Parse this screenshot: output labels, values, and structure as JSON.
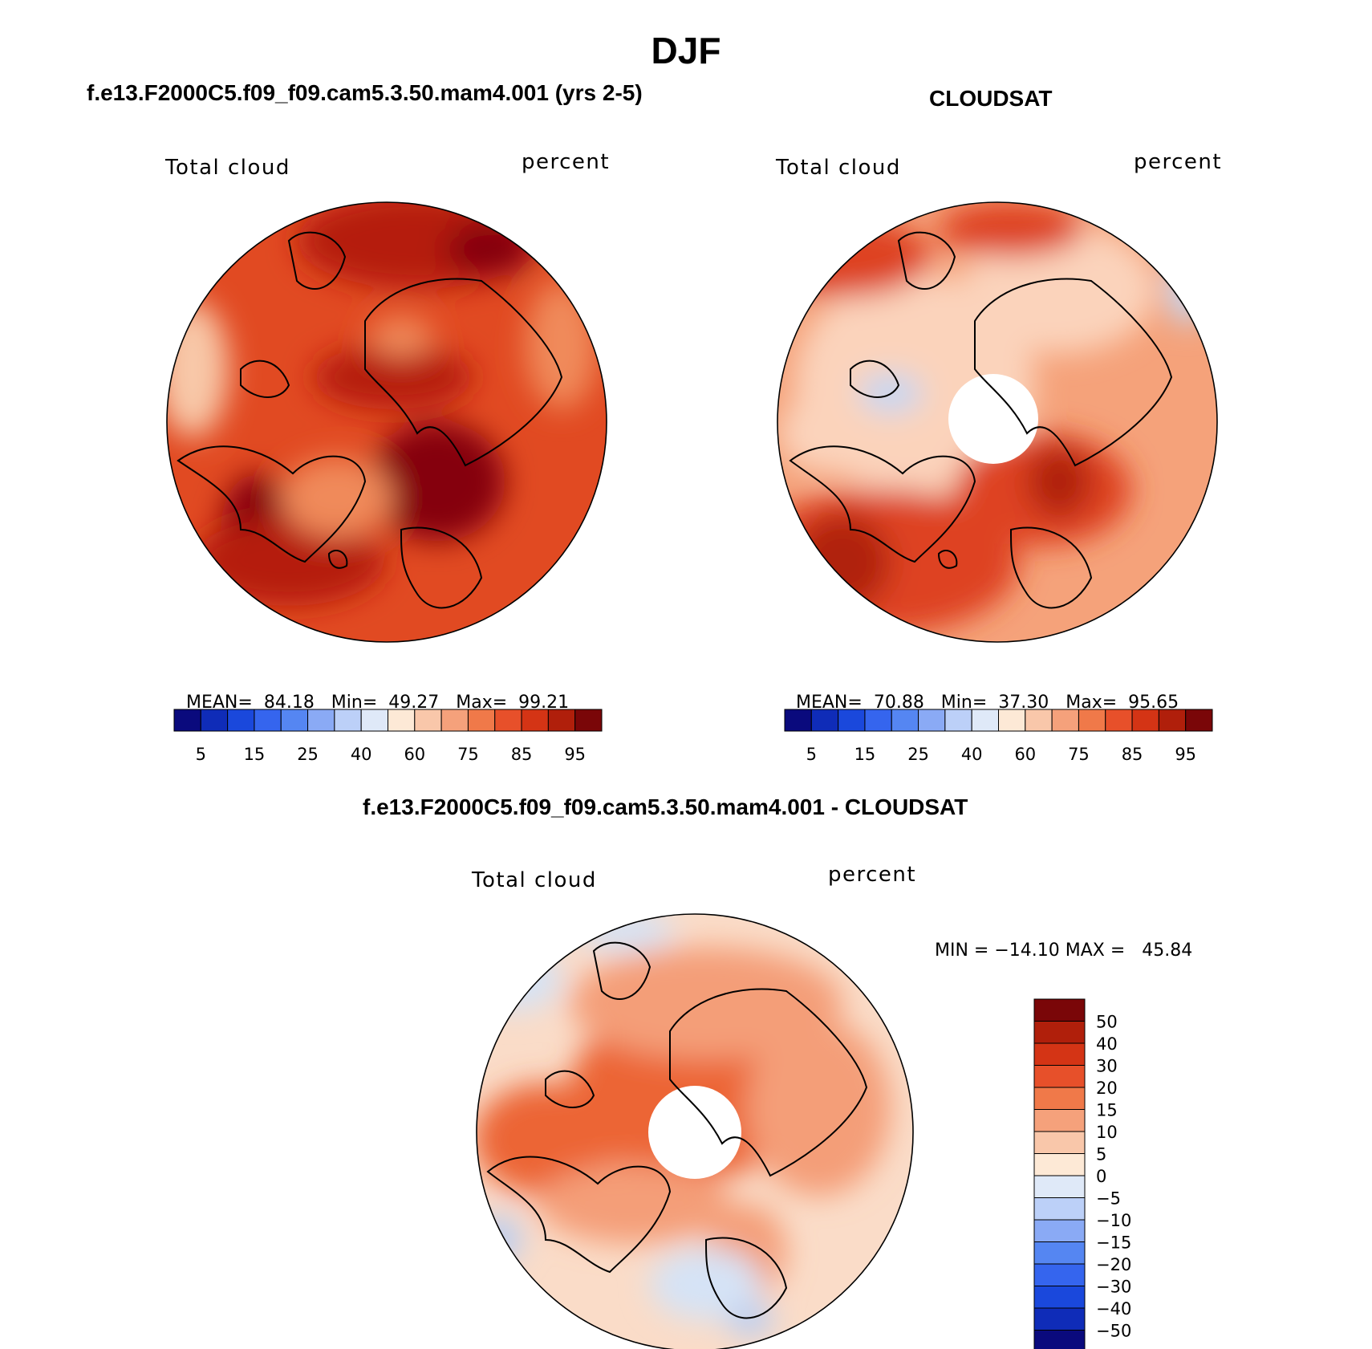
{
  "title": "DJF",
  "panels": [
    {
      "title": "f.e13.F2000C5.f09_f09.cam5.3.50.mam4.001 (yrs 2-5)",
      "left_label": "Total cloud",
      "right_label": "percent",
      "stats": {
        "mean_label": "MEAN=",
        "mean": "84.18",
        "min_label": "Min=",
        "min": "49.27",
        "max_label": "Max=",
        "max": "99.21"
      }
    },
    {
      "title": "CLOUDSAT",
      "left_label": "Total cloud",
      "right_label": "percent",
      "stats": {
        "mean_label": "MEAN=",
        "mean": "70.88",
        "min_label": "Min=",
        "min": "37.30",
        "max_label": "Max=",
        "max": "95.65"
      }
    },
    {
      "title": "f.e13.F2000C5.f09_f09.cam5.3.50.mam4.001 - CLOUDSAT",
      "left_label": "Total cloud",
      "right_label": "percent",
      "stats": {
        "text": "MIN = −14.10 MAX =   45.84"
      }
    }
  ],
  "colorbar_abs": {
    "colors": [
      "#0a0a7d",
      "#0f2cb8",
      "#1a48dc",
      "#3565ee",
      "#5586f2",
      "#8aaaf5",
      "#bcd0f8",
      "#dfe9f8",
      "#fde9d6",
      "#f9c7aa",
      "#f5a17b",
      "#f07949",
      "#e7502a",
      "#d43415",
      "#b01f0b",
      "#7a0608"
    ],
    "tick_labels": [
      "5",
      "15",
      "25",
      "40",
      "60",
      "75",
      "85",
      "95"
    ]
  },
  "colorbar_diff": {
    "colors": [
      "#7a0608",
      "#b01f0b",
      "#d43415",
      "#e7502a",
      "#f07949",
      "#f5a17b",
      "#f9c7aa",
      "#fde9d6",
      "#dfe9f8",
      "#bcd0f8",
      "#8aaaf5",
      "#5586f2",
      "#3565ee",
      "#1a48dc",
      "#0f2cb8",
      "#0a0a7d"
    ],
    "tick_labels": [
      "50",
      "40",
      "30",
      "20",
      "15",
      "10",
      "5",
      "0",
      "−5",
      "−10",
      "−15",
      "−20",
      "−30",
      "−40",
      "−50"
    ]
  },
  "map_colors": {
    "model_base": "#e14a22",
    "model_dark": "#b51f0c",
    "model_darkest": "#850608",
    "model_light": "#f08a5a",
    "model_pale": "#f8c8a8",
    "obs_base": "#f5a27a",
    "obs_light": "#fbd3bb",
    "obs_dark": "#de4321",
    "obs_darkest": "#b02210",
    "obs_blue": "#c5d7f3",
    "diff_base": "#fadcc8",
    "diff_mid": "#f49e78",
    "diff_strong": "#ec6536",
    "diff_blue": "#d5e3f6",
    "diff_blue2": "#b8cdf3",
    "coast": "#000000"
  }
}
